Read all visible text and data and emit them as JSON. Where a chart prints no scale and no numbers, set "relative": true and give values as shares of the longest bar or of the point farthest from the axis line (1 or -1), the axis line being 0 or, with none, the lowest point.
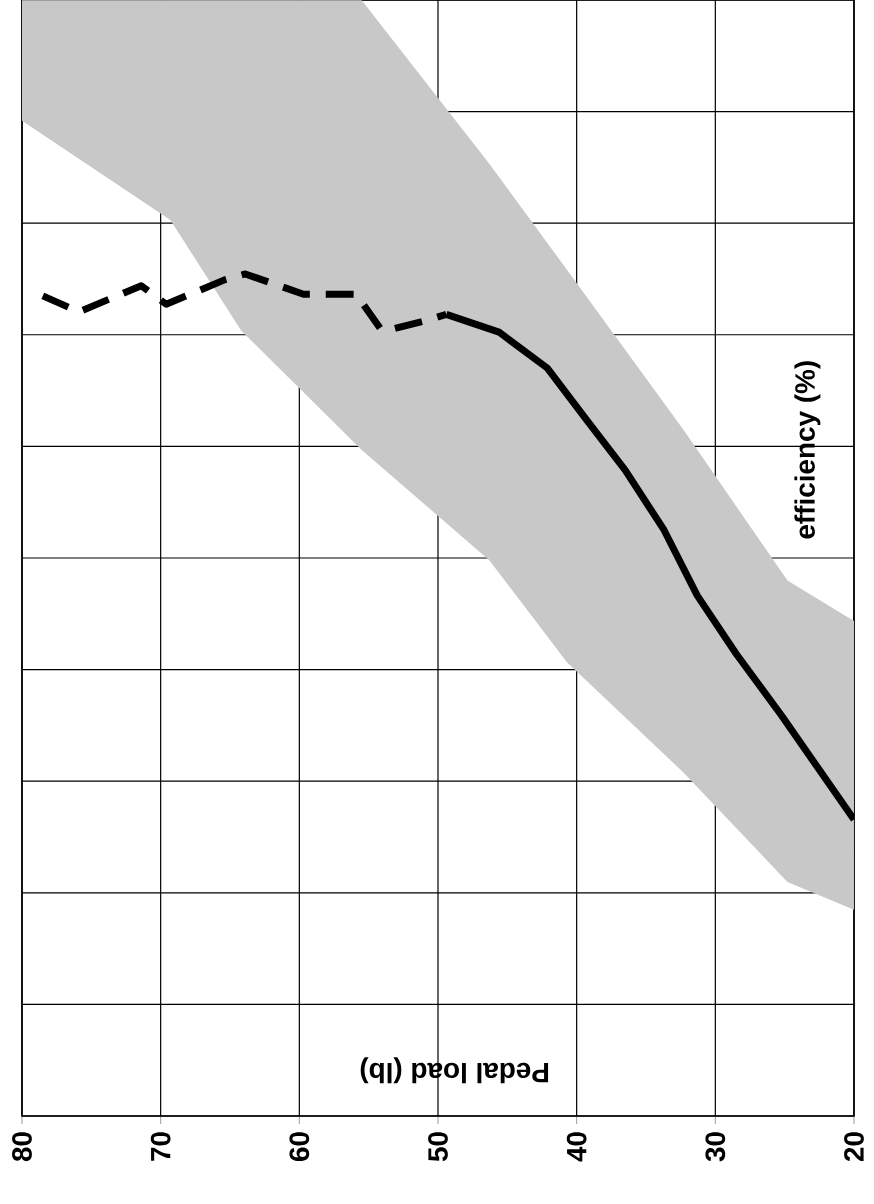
{
  "chart_data": {
    "type": "line",
    "xlabel": "Pedal load (lb)",
    "ylabel": "efficiency (%)",
    "relative": true,
    "xlim": [
      80,
      20
    ],
    "xticks": [
      80,
      70,
      60,
      50,
      40,
      30,
      20
    ],
    "grid": true,
    "series": [
      {
        "color": "#c8c8c8",
        "x": [
          80,
          69.3,
          64.2,
          55.5,
          46.3,
          40.7,
          32.3,
          24.8,
          20
        ],
        "values": [
          null,
          null,
          null,
          null,
          null,
          null,
          null,
          null,
          null
        ],
        "lower": [
          1.182,
          1.064,
          0.933,
          0.791,
          0.66,
          0.539,
          0.408,
          0.278,
          0.245
        ],
        "upper": [
          1.325,
          1.325,
          1.325,
          1.325,
          1.131,
          1.005,
          0.815,
          0.636,
          0.588
        ]
      },
      {
        "color": "#000000",
        "line_style": "dashed",
        "x": [
          78.5,
          75.9,
          71.4,
          69.6,
          65.4,
          63.9,
          61.8,
          59.7,
          55.9,
          54.1,
          53.4,
          50.8,
          49.4
        ],
        "values": [
          0.974,
          0.955,
          0.986,
          0.964,
          0.993,
          1.0,
          0.988,
          0.976,
          0.976,
          0.934,
          0.934,
          0.945,
          0.952
        ]
      },
      {
        "color": "#000000",
        "line_style": "solid",
        "x": [
          49.4,
          45.6,
          42.1,
          39.3,
          36.5,
          33.7,
          31.3,
          28.5,
          25.2,
          20
        ],
        "values": [
          0.952,
          0.931,
          0.888,
          0.827,
          0.767,
          0.696,
          0.618,
          0.549,
          0.475,
          0.352
        ]
      }
    ]
  }
}
